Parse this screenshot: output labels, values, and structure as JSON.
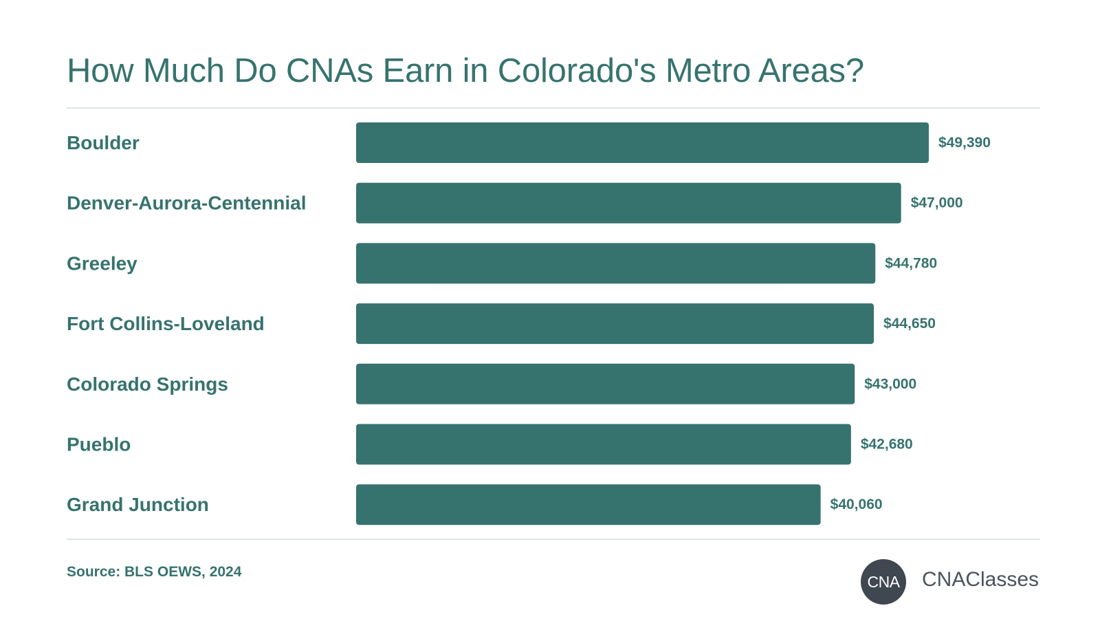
{
  "colors": {
    "accent": "#36736e",
    "label": "#36736e",
    "title": "#36736e",
    "logo_circle": "#3f4750",
    "logo_text": "#4a525b",
    "rule": "#dde6e4"
  },
  "header": {
    "title": "How Much Do CNAs Earn in Colorado's Metro Areas?"
  },
  "footer": {
    "source": "Source: BLS OEWS, 2024",
    "logo_mark": "CNA",
    "logo_name": "CNAClasses"
  },
  "chart_data": {
    "type": "bar",
    "orientation": "horizontal",
    "categories": [
      "Boulder",
      "Denver-Aurora-Centennial",
      "Greeley",
      "Fort Collins-Loveland",
      "Colorado Springs",
      "Pueblo",
      "Grand Junction"
    ],
    "values": [
      49390,
      47000,
      44780,
      44650,
      43000,
      42680,
      40060
    ],
    "value_labels": [
      "$49,390",
      "$47,000",
      "$44,780",
      "$44,650",
      "$43,000",
      "$42,680",
      "$40,060"
    ],
    "xlim": [
      0,
      49390
    ],
    "grid": false,
    "legend": "none"
  }
}
